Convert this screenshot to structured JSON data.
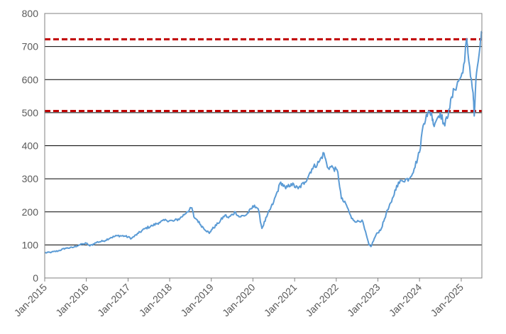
{
  "chart_data": {
    "type": "line",
    "title": "",
    "xlabel": "",
    "ylabel": "",
    "xlim": [
      "2015-01-01",
      "2025-07-01"
    ],
    "ylim": [
      0,
      800
    ],
    "x_ticks": [
      "Jan-2015",
      "Jan-2016",
      "Jan-2017",
      "Jan-2018",
      "Jan-2019",
      "Jan-2020",
      "Jan-2021",
      "Jan-2022",
      "Jan-2023",
      "Jan-2024",
      "Jan-2025"
    ],
    "y_ticks": [
      "0",
      "100",
      "200",
      "300",
      "400",
      "500",
      "600",
      "700",
      "800"
    ],
    "grid": true,
    "legend": "none",
    "series": [
      {
        "color": "#5b9bd5",
        "points": [
          [
            "2015-01-01",
            76
          ],
          [
            "2015-03-01",
            78
          ],
          [
            "2015-05-01",
            82
          ],
          [
            "2015-07-01",
            90
          ],
          [
            "2015-09-01",
            92
          ],
          [
            "2015-11-01",
            100
          ],
          [
            "2016-01-01",
            105
          ],
          [
            "2016-02-01",
            97
          ],
          [
            "2016-04-01",
            108
          ],
          [
            "2016-06-01",
            112
          ],
          [
            "2016-08-01",
            122
          ],
          [
            "2016-10-01",
            128
          ],
          [
            "2016-12-01",
            127
          ],
          [
            "2017-02-01",
            120
          ],
          [
            "2017-04-01",
            135
          ],
          [
            "2017-06-01",
            150
          ],
          [
            "2017-08-01",
            158
          ],
          [
            "2017-10-01",
            168
          ],
          [
            "2017-12-01",
            175
          ],
          [
            "2018-02-01",
            172
          ],
          [
            "2018-04-01",
            180
          ],
          [
            "2018-06-01",
            200
          ],
          [
            "2018-07-15",
            212
          ],
          [
            "2018-08-01",
            185
          ],
          [
            "2018-09-01",
            175
          ],
          [
            "2018-10-01",
            160
          ],
          [
            "2018-12-15",
            135
          ],
          [
            "2019-01-01",
            145
          ],
          [
            "2019-03-01",
            165
          ],
          [
            "2019-05-01",
            190
          ],
          [
            "2019-06-01",
            182
          ],
          [
            "2019-08-01",
            200
          ],
          [
            "2019-09-01",
            185
          ],
          [
            "2019-11-01",
            190
          ],
          [
            "2020-01-15",
            220
          ],
          [
            "2020-02-15",
            210
          ],
          [
            "2020-03-20",
            150
          ],
          [
            "2020-05-01",
            185
          ],
          [
            "2020-07-01",
            230
          ],
          [
            "2020-09-01",
            290
          ],
          [
            "2020-10-15",
            270
          ],
          [
            "2020-12-01",
            285
          ],
          [
            "2021-02-01",
            270
          ],
          [
            "2021-04-01",
            290
          ],
          [
            "2021-06-01",
            330
          ],
          [
            "2021-08-01",
            350
          ],
          [
            "2021-09-15",
            378
          ],
          [
            "2021-10-15",
            335
          ],
          [
            "2021-12-01",
            335
          ],
          [
            "2022-01-15",
            320
          ],
          [
            "2022-02-15",
            240
          ],
          [
            "2022-04-01",
            220
          ],
          [
            "2022-05-15",
            180
          ],
          [
            "2022-07-01",
            170
          ],
          [
            "2022-08-15",
            175
          ],
          [
            "2022-10-15",
            100
          ],
          [
            "2022-11-01",
            95
          ],
          [
            "2022-12-15",
            130
          ],
          [
            "2023-02-01",
            150
          ],
          [
            "2023-03-15",
            195
          ],
          [
            "2023-05-01",
            230
          ],
          [
            "2023-06-15",
            280
          ],
          [
            "2023-08-01",
            295
          ],
          [
            "2023-10-01",
            300
          ],
          [
            "2023-11-15",
            330
          ],
          [
            "2024-01-01",
            380
          ],
          [
            "2024-02-01",
            460
          ],
          [
            "2024-03-01",
            495
          ],
          [
            "2024-04-15",
            500
          ],
          [
            "2024-05-01",
            465
          ],
          [
            "2024-07-01",
            500
          ],
          [
            "2024-08-10",
            460
          ],
          [
            "2024-09-15",
            510
          ],
          [
            "2024-11-01",
            570
          ],
          [
            "2024-12-15",
            600
          ],
          [
            "2025-01-15",
            620
          ],
          [
            "2025-02-15",
            720
          ],
          [
            "2025-03-01",
            680
          ],
          [
            "2025-04-15",
            560
          ],
          [
            "2025-04-25",
            490
          ],
          [
            "2025-05-15",
            620
          ],
          [
            "2025-06-15",
            700
          ],
          [
            "2025-07-01",
            740
          ]
        ]
      }
    ],
    "reference_lines": [
      {
        "y": 722,
        "color": "#c00000",
        "style": "dashed"
      },
      {
        "y": 505,
        "color": "#c00000",
        "style": "dashed"
      }
    ]
  }
}
